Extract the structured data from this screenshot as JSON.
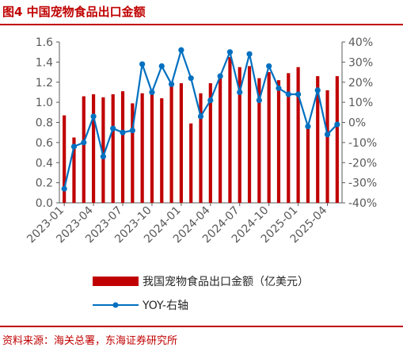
{
  "title": "图4  中国宠物食品出口金额",
  "source": "资料来源：海关总署，东海证券研究所",
  "colors": {
    "bar": "#c00000",
    "line": "#0070c0",
    "title": "#c00000",
    "axis": "#595959"
  },
  "legend": {
    "bar_label": "我国宠物食品出口金额（亿美元）",
    "line_label": "YOY-右轴"
  },
  "chart_data": {
    "type": "bar+line",
    "x_tick_labels": [
      "2023-01",
      "2023-04",
      "2023-07",
      "2023-10",
      "2024-01",
      "2024-04",
      "2024-07",
      "2024-10",
      "2025-01",
      "2025-04"
    ],
    "left_ticks": [
      "0.0",
      "0.2",
      "0.4",
      "0.6",
      "0.8",
      "1.0",
      "1.2",
      "1.4",
      "1.6"
    ],
    "right_ticks": [
      "-40%",
      "-30%",
      "-20%",
      "-10%",
      "0%",
      "10%",
      "20%",
      "30%",
      "40%"
    ],
    "ylim_left": [
      0,
      1.6
    ],
    "ylim_right": [
      -40,
      40
    ],
    "months": [
      "2023-01",
      "2023-02",
      "2023-03",
      "2023-04",
      "2023-05",
      "2023-06",
      "2023-07",
      "2023-08",
      "2023-09",
      "2023-10",
      "2023-11",
      "2023-12",
      "2024-01",
      "2024-02",
      "2024-03",
      "2024-04",
      "2024-05",
      "2024-06",
      "2024-07",
      "2024-08",
      "2024-09",
      "2024-10",
      "2024-11",
      "2024-12",
      "2025-01",
      "2025-02",
      "2025-03",
      "2025-04",
      "2025-05"
    ],
    "series": [
      {
        "name": "我国宠物食品出口金额（亿美元）",
        "axis": "left",
        "kind": "bar",
        "values": [
          0.87,
          0.65,
          1.06,
          1.08,
          1.05,
          1.08,
          1.11,
          0.99,
          1.09,
          1.11,
          1.04,
          1.16,
          1.19,
          0.79,
          1.09,
          1.19,
          1.26,
          1.45,
          1.35,
          1.36,
          1.24,
          1.3,
          1.22,
          1.29,
          1.35,
          0.76,
          1.26,
          1.12,
          1.26
        ]
      },
      {
        "name": "YOY-右轴",
        "axis": "right",
        "kind": "line",
        "values": [
          -33,
          -12,
          -10,
          3,
          -17,
          -3,
          -5,
          -4,
          29,
          15,
          28,
          19,
          36,
          22,
          3,
          11,
          23,
          35,
          15,
          34,
          11,
          28,
          17,
          14,
          14,
          -2,
          16,
          -6,
          -1
        ]
      }
    ],
    "grid": false,
    "legend_position": "bottom"
  }
}
